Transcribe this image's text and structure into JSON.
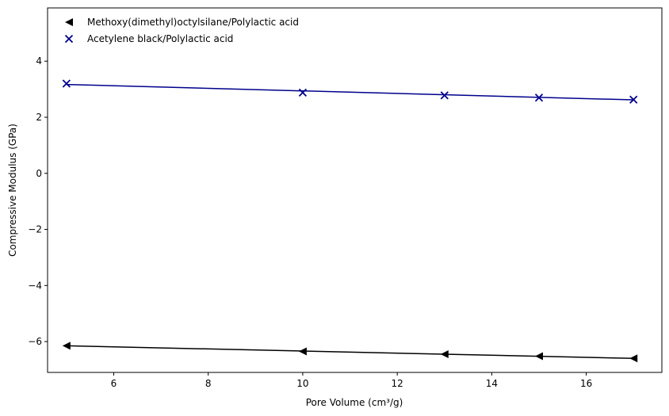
{
  "chart_data": {
    "type": "scatter",
    "xlabel": "Pore Volume (cm³/g)",
    "ylabel": "Compressive Modulus (GPa)",
    "xlim": [
      4.6,
      17.6
    ],
    "ylim": [
      -7.1,
      5.9
    ],
    "x_ticks": [
      6,
      8,
      10,
      12,
      14,
      16
    ],
    "y_ticks": [
      -6,
      -4,
      -2,
      0,
      2,
      4
    ],
    "x_tick_labels": [
      "6",
      "8",
      "10",
      "12",
      "14",
      "16"
    ],
    "y_tick_labels": [
      "−6",
      "−4",
      "−2",
      "0",
      "2",
      "4"
    ],
    "grid": false,
    "legend_position": "upper-left",
    "series": [
      {
        "name": "Methoxy(dimethyl)octylsilane/Polylactic acid",
        "marker": "triangle-left",
        "color": "#000000",
        "x": [
          5,
          10,
          13,
          15,
          17
        ],
        "y": [
          -6.15,
          -6.35,
          -6.45,
          -6.52,
          -6.6
        ],
        "fit": {
          "x": [
            5,
            17
          ],
          "y": [
            -6.15,
            -6.6
          ]
        }
      },
      {
        "name": "Acetylene black/Polylactic acid",
        "marker": "x",
        "color": "#00008b",
        "x": [
          5,
          10,
          13,
          15,
          17
        ],
        "y": [
          3.2,
          2.88,
          2.78,
          2.7,
          2.63
        ],
        "fit": {
          "x": [
            5,
            17
          ],
          "y": [
            3.17,
            2.62
          ]
        }
      }
    ]
  }
}
